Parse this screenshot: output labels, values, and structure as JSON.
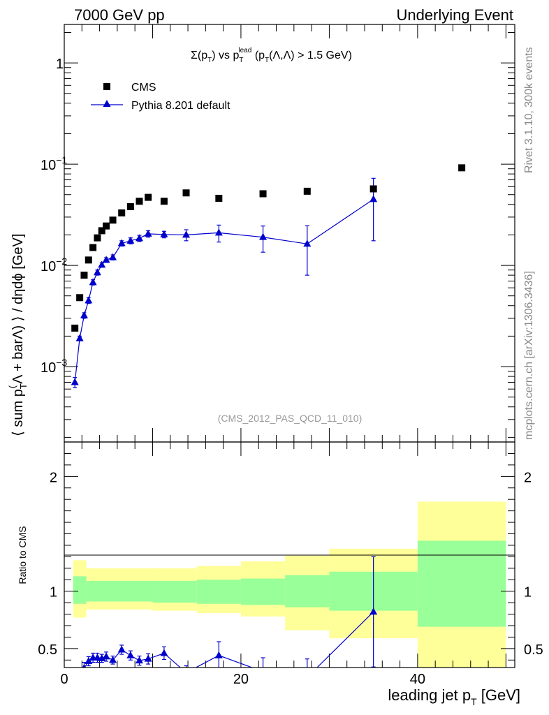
{
  "header": {
    "left": "7000 GeV pp",
    "right": "Underlying Event"
  },
  "side_labels": {
    "rivet": "Rivet 3.1.10,  300k events",
    "mcplots": "mcplots.cern.ch [arXiv:1306.3436]"
  },
  "colors": {
    "cms": "#000000",
    "pythia": "#0000cc",
    "band_inner": "#99ff99",
    "band_outer": "#ffff99"
  },
  "chart_data": [
    {
      "type": "scatter",
      "panel": "main",
      "title_parts": {
        "sigma": "Σ(p",
        "sub_t": "T",
        "mid": ") vs p",
        "sup_lead": "lead",
        "sub_t2": "T",
        "paren_open": " (p",
        "sub_t3": "T",
        "particles": "(Λ,Λ) > 1.5 GeV)"
      },
      "ylabel": "⟨ sum p(T Λ + barΛ) ⟩ / dηdϕ [GeV]",
      "ylabel_parts": {
        "a": "⟨ sum p",
        "b": "T",
        "c": "(",
        "d": "Λ + barΛ) ⟩ / dηdϕ [GeV]"
      },
      "yscale": "log",
      "ylim": [
        0.00018,
        2.4
      ],
      "xlim": [
        0,
        51
      ],
      "yticks": [
        {
          "value": 1,
          "label": "1"
        },
        {
          "value": 0.1,
          "label": "10",
          "exp": "−1"
        },
        {
          "value": 0.01,
          "label": "10",
          "exp": "−2"
        },
        {
          "value": 0.001,
          "label": "10",
          "exp": "−3"
        }
      ],
      "reference": "(CMS_2012_PAS_QCD_11_010)",
      "legend": {
        "placement": "top-left",
        "entries": [
          "CMS",
          "Pythia 8.201 default"
        ]
      },
      "series": [
        {
          "name": "CMS",
          "marker": "square",
          "x": [
            1.2,
            1.75,
            2.25,
            2.75,
            3.25,
            3.75,
            4.25,
            4.75,
            5.5,
            6.5,
            7.5,
            8.5,
            9.5,
            11.3,
            13.8,
            17.5,
            22.5,
            27.5,
            35,
            45
          ],
          "y": [
            0.0024,
            0.0048,
            0.008,
            0.0113,
            0.015,
            0.0187,
            0.022,
            0.0245,
            0.028,
            0.033,
            0.038,
            0.043,
            0.047,
            0.043,
            0.052,
            0.046,
            0.051,
            0.054,
            0.057,
            0.092
          ]
        },
        {
          "name": "Pythia 8.201 default",
          "marker": "triangle",
          "x": [
            1.2,
            1.75,
            2.25,
            2.75,
            3.25,
            3.75,
            4.25,
            4.75,
            5.5,
            6.5,
            7.5,
            8.5,
            9.5,
            11.3,
            13.8,
            17.5,
            22.5,
            27.5,
            35
          ],
          "y": [
            0.0007,
            0.0019,
            0.0032,
            0.0045,
            0.0068,
            0.0085,
            0.0101,
            0.0113,
            0.012,
            0.0165,
            0.0175,
            0.0185,
            0.0205,
            0.0202,
            0.02,
            0.021,
            0.019,
            0.0163,
            0.045
          ],
          "err_low": [
            8e-05,
            0.0001,
            0.0002,
            0.0003,
            0.0004,
            0.0005,
            0.0005,
            0.0006,
            0.0007,
            0.001,
            0.0012,
            0.0013,
            0.0015,
            0.0015,
            0.0025,
            0.004,
            0.0055,
            0.0083,
            0.0275
          ],
          "err_high": [
            8e-05,
            0.0001,
            0.0002,
            0.0003,
            0.0004,
            0.0005,
            0.0005,
            0.0006,
            0.0007,
            0.001,
            0.0012,
            0.0013,
            0.0015,
            0.0015,
            0.0025,
            0.004,
            0.0055,
            0.0083,
            0.0275
          ]
        }
      ]
    },
    {
      "type": "line",
      "panel": "ratio",
      "ylabel": "Ratio to CMS",
      "xlabel": "leading jet p",
      "xlabel_sub": "T",
      "xlabel_unit": " [GeV]",
      "xlim": [
        0,
        51
      ],
      "ylim": [
        0.335,
        2.3
      ],
      "xticks": [
        {
          "value": 0,
          "label": "0"
        },
        {
          "value": 20,
          "label": "20"
        },
        {
          "value": 40,
          "label": "40"
        }
      ],
      "yticks": [
        {
          "value": 0.5,
          "label": "0.5"
        },
        {
          "value": 1,
          "label": "1"
        },
        {
          "value": 2,
          "label": "2"
        }
      ],
      "bands": [
        {
          "x0": 1,
          "x1": 2.5,
          "inner": [
            0.89,
            1.13
          ],
          "outer": [
            0.77,
            1.27
          ]
        },
        {
          "x0": 2.5,
          "x1": 10,
          "inner": [
            0.91,
            1.09
          ],
          "outer": [
            0.84,
            1.2
          ]
        },
        {
          "x0": 10,
          "x1": 15,
          "inner": [
            0.9,
            1.09
          ],
          "outer": [
            0.83,
            1.2
          ]
        },
        {
          "x0": 15,
          "x1": 20,
          "inner": [
            0.89,
            1.1
          ],
          "outer": [
            0.81,
            1.22
          ]
        },
        {
          "x0": 20,
          "x1": 25,
          "inner": [
            0.88,
            1.11
          ],
          "outer": [
            0.78,
            1.26
          ]
        },
        {
          "x0": 25,
          "x1": 30,
          "inner": [
            0.86,
            1.14
          ],
          "outer": [
            0.66,
            1.31
          ]
        },
        {
          "x0": 30,
          "x1": 40,
          "inner": [
            0.83,
            1.17
          ],
          "outer": [
            0.59,
            1.37
          ]
        },
        {
          "x0": 40,
          "x1": 50,
          "inner": [
            0.69,
            1.44
          ],
          "outer": [
            0.33,
            1.78
          ]
        }
      ],
      "series": [
        {
          "name": "Pythia 8.201 default",
          "x": [
            2.25,
            2.75,
            3.25,
            3.75,
            4.25,
            4.75,
            5.5,
            6.5,
            7.5,
            8.5,
            9.5,
            11.3,
            13.8,
            17.5,
            22.5,
            27.5,
            35
          ],
          "y": [
            0.33,
            0.39,
            0.42,
            0.42,
            0.415,
            0.43,
            0.4,
            0.49,
            0.44,
            0.395,
            0.41,
            0.46,
            0.29,
            0.44,
            0.3,
            0.25,
            0.82
          ],
          "err": [
            0.05,
            0.04,
            0.04,
            0.04,
            0.035,
            0.04,
            0.035,
            0.04,
            0.04,
            0.04,
            0.045,
            0.055,
            0.06,
            0.12,
            0.12,
            0.16,
            0.48
          ]
        }
      ]
    }
  ]
}
